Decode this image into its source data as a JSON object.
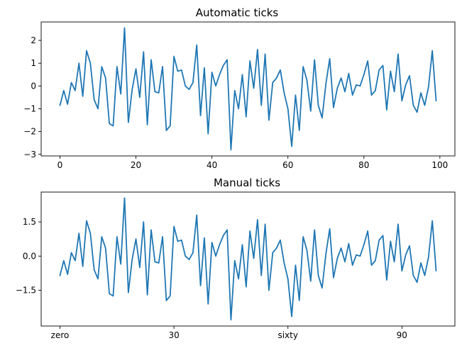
{
  "colors": {
    "series": "#1f77b4",
    "axes": "#000000",
    "background": "#ffffff"
  },
  "chart_data": [
    {
      "type": "line",
      "title": "Automatic ticks",
      "xlabel": "",
      "ylabel": "",
      "xlim": [
        -4.95,
        103.95
      ],
      "ylim": [
        -3.07,
        2.81
      ],
      "grid": false,
      "xticks": [
        0,
        20,
        40,
        60,
        80,
        100
      ],
      "xtick_labels": [
        "0",
        "20",
        "40",
        "60",
        "80",
        "100"
      ],
      "yticks": [
        -3,
        -2,
        -1,
        0,
        1,
        2
      ],
      "ytick_labels": [
        "−3",
        "−2",
        "−1",
        "0",
        "1",
        "2"
      ],
      "series": [
        {
          "values": [
            -0.85,
            -0.2,
            -0.8,
            0.15,
            -0.2,
            1.0,
            -0.45,
            1.55,
            1.0,
            -0.6,
            -1.0,
            0.85,
            0.35,
            -1.65,
            -1.75,
            0.85,
            -0.35,
            2.55,
            -1.6,
            -0.15,
            0.75,
            -0.5,
            1.5,
            -1.7,
            1.15,
            -0.25,
            -0.3,
            0.85,
            -1.95,
            -1.75,
            1.3,
            0.65,
            0.7,
            0.0,
            -0.15,
            0.15,
            1.8,
            -1.3,
            0.8,
            -2.1,
            0.6,
            0.0,
            0.5,
            0.9,
            1.15,
            -2.8,
            -0.2,
            -1.0,
            0.5,
            -1.35,
            1.1,
            -0.1,
            1.6,
            -0.85,
            1.4,
            -1.5,
            0.15,
            0.35,
            0.7,
            -0.3,
            -1.0,
            -2.65,
            -0.4,
            -1.95,
            0.85,
            0.25,
            -1.1,
            1.15,
            -0.85,
            -1.4,
            0.1,
            1.2,
            -0.95,
            -0.1,
            0.35,
            -0.25,
            0.55,
            -0.4,
            0.05,
            0.0,
            0.5,
            1.1,
            -0.4,
            -0.2,
            0.7,
            0.9,
            -1.05,
            0.65,
            -0.25,
            1.4,
            -0.65,
            0.05,
            0.45,
            -0.85,
            -1.15,
            -0.3,
            -0.85,
            -0.05,
            1.55,
            -0.65
          ]
        }
      ]
    },
    {
      "type": "line",
      "title": "Manual ticks",
      "xlabel": "",
      "ylabel": "",
      "xlim": [
        -4.95,
        103.95
      ],
      "ylim": [
        -3.07,
        2.81
      ],
      "grid": false,
      "xticks": [
        0,
        30,
        60,
        90
      ],
      "xtick_labels": [
        "zero",
        "30",
        "sixty",
        "90"
      ],
      "yticks": [
        -1.5,
        0.0,
        1.5
      ],
      "ytick_labels": [
        "−1.5",
        "0.0",
        "1.5"
      ],
      "series": [
        {
          "values": [
            -0.85,
            -0.2,
            -0.8,
            0.15,
            -0.2,
            1.0,
            -0.45,
            1.55,
            1.0,
            -0.6,
            -1.0,
            0.85,
            0.35,
            -1.65,
            -1.75,
            0.85,
            -0.35,
            2.55,
            -1.6,
            -0.15,
            0.75,
            -0.5,
            1.5,
            -1.7,
            1.15,
            -0.25,
            -0.3,
            0.85,
            -1.95,
            -1.75,
            1.3,
            0.65,
            0.7,
            0.0,
            -0.15,
            0.15,
            1.8,
            -1.3,
            0.8,
            -2.1,
            0.6,
            0.0,
            0.5,
            0.9,
            1.15,
            -2.8,
            -0.2,
            -1.0,
            0.5,
            -1.35,
            1.1,
            -0.1,
            1.6,
            -0.85,
            1.4,
            -1.5,
            0.15,
            0.35,
            0.7,
            -0.3,
            -1.0,
            -2.65,
            -0.4,
            -1.95,
            0.85,
            0.25,
            -1.1,
            1.15,
            -0.85,
            -1.4,
            0.1,
            1.2,
            -0.95,
            -0.1,
            0.35,
            -0.25,
            0.55,
            -0.4,
            0.05,
            0.0,
            0.5,
            1.1,
            -0.4,
            -0.2,
            0.7,
            0.9,
            -1.05,
            0.65,
            -0.25,
            1.4,
            -0.65,
            0.05,
            0.45,
            -0.85,
            -1.15,
            -0.3,
            -0.85,
            -0.05,
            1.55,
            -0.65
          ]
        }
      ]
    }
  ]
}
